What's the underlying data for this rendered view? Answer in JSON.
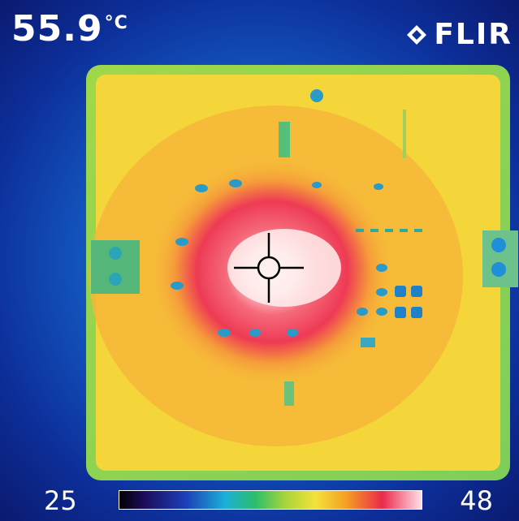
{
  "readout": {
    "value": "55.9",
    "unit": "°C"
  },
  "brand": {
    "name": "FLIR",
    "icon": "flir-diamond-logo"
  },
  "scale": {
    "min": "25",
    "max": "48"
  },
  "colors": {
    "board": "#f3d33a",
    "hot": "#ea2a4a",
    "peak": "#fff4f2",
    "background": "#1560c8"
  }
}
